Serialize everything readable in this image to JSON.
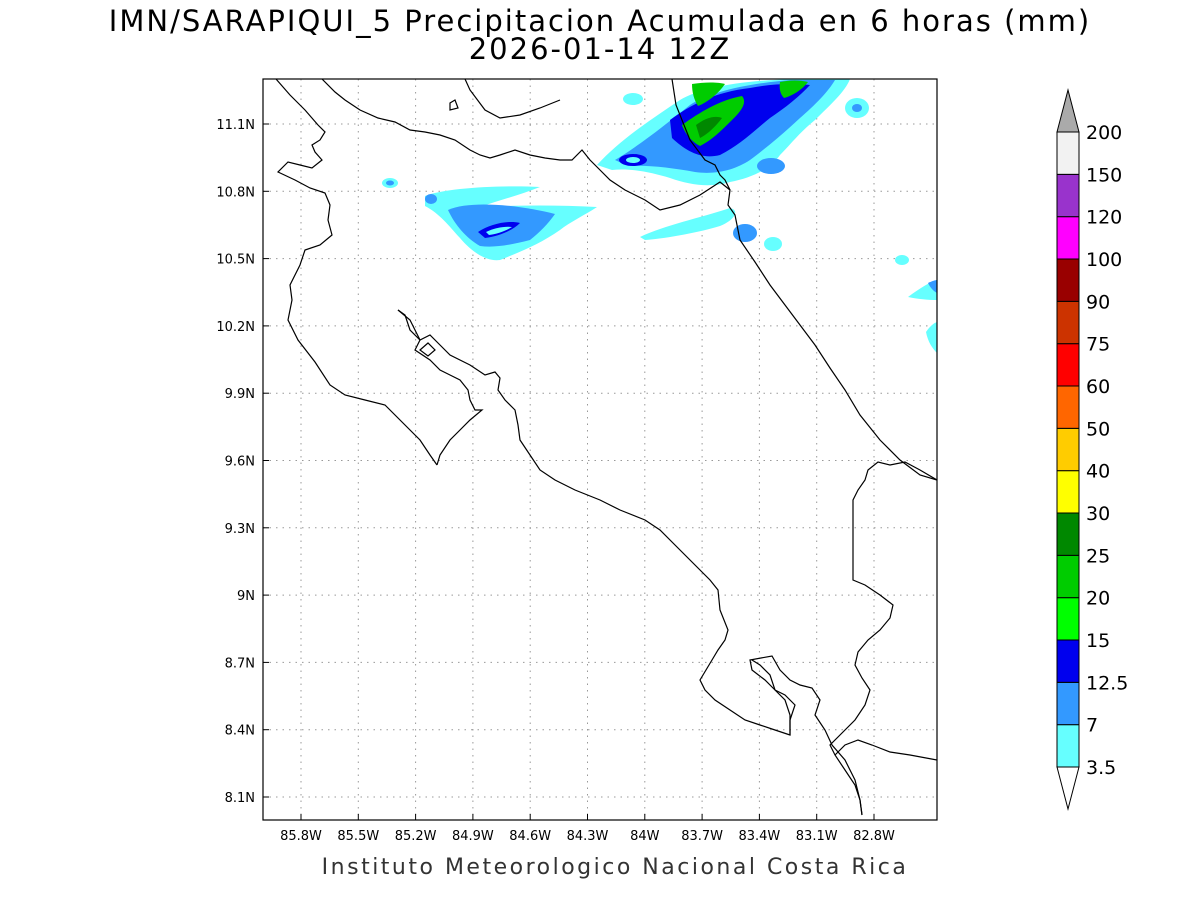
{
  "title": {
    "line1": "IMN/SARAPIQUI_5 Precipitacion Acumulada en 6 horas (mm)",
    "line2": "2026-01-14 12Z"
  },
  "footer": "Instituto Meteorologico Nacional Costa Rica",
  "axes": {
    "lat_labels": [
      "11.1N",
      "10.8N",
      "10.5N",
      "10.2N",
      "9.9N",
      "9.6N",
      "9.3N",
      "9N",
      "8.7N",
      "8.4N",
      "8.1N"
    ],
    "lon_labels": [
      "85.8W",
      "85.5W",
      "85.2W",
      "84.9W",
      "84.6W",
      "84.3W",
      "84W",
      "83.7W",
      "83.4W",
      "83.1W",
      "82.8W"
    ],
    "grid": true
  },
  "colorbar": {
    "levels": [
      "3.5",
      "7",
      "12.5",
      "15",
      "20",
      "25",
      "30",
      "40",
      "50",
      "60",
      "75",
      "90",
      "100",
      "120",
      "150",
      "200"
    ],
    "colors": [
      "#ffffff",
      "#66ffff",
      "#3399ff",
      "#0000ee",
      "#00ff00",
      "#00cc00",
      "#008800",
      "#ffff00",
      "#ffcc00",
      "#ff6600",
      "#ff0000",
      "#cc3300",
      "#990000",
      "#ff00ff",
      "#9933cc",
      "#f2f2f2",
      "#aaaaaa"
    ]
  }
}
